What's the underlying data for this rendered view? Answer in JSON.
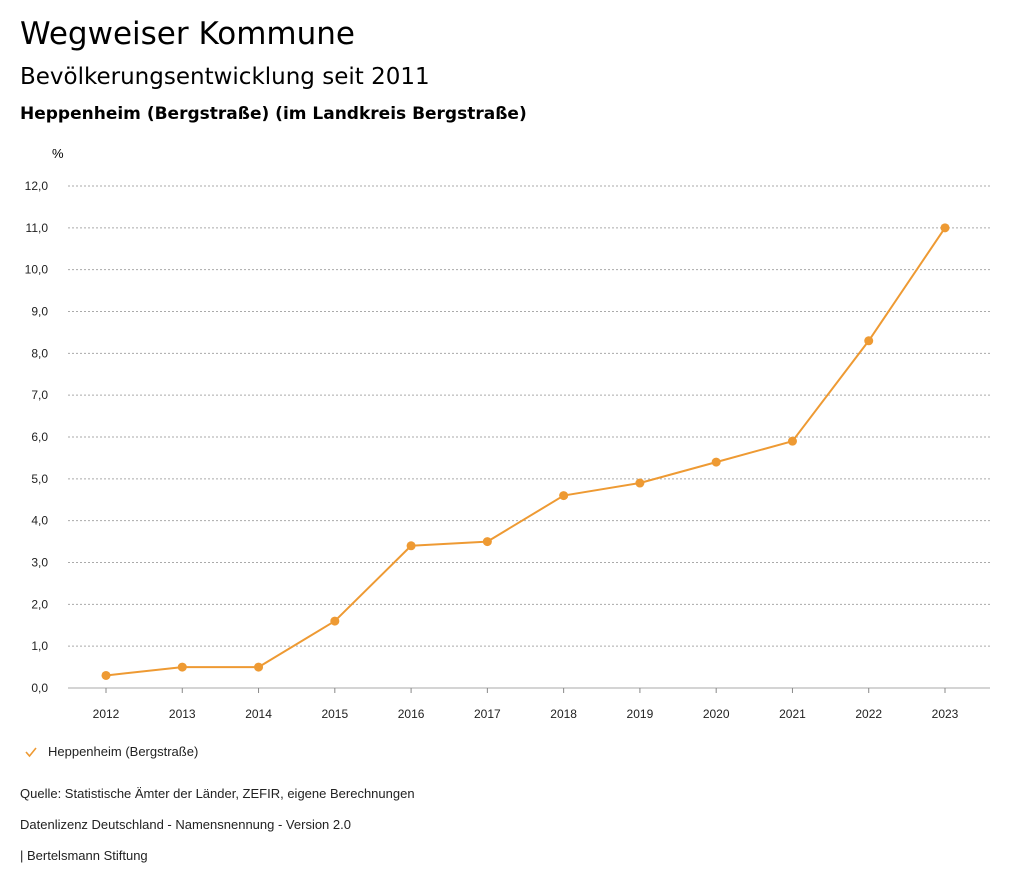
{
  "header": {
    "title": "Wegweiser Kommune",
    "subtitle": "Bevölkerungsentwicklung seit 2011",
    "region": "Heppenheim (Bergstraße) (im Landkreis Bergstraße)"
  },
  "colors": {
    "series": "#ee9a33",
    "grid": "#aaaaaa",
    "axis": "#888888"
  },
  "chart_data": {
    "type": "line",
    "ylabel": "%",
    "ylim": [
      0,
      12
    ],
    "yticks": [
      "0,0",
      "1,0",
      "2,0",
      "3,0",
      "4,0",
      "5,0",
      "6,0",
      "7,0",
      "8,0",
      "9,0",
      "10,0",
      "11,0",
      "12,0"
    ],
    "categories": [
      "2012",
      "2013",
      "2014",
      "2015",
      "2016",
      "2017",
      "2018",
      "2019",
      "2020",
      "2021",
      "2022",
      "2023"
    ],
    "grid": true,
    "legend_position": "bottom-left",
    "series": [
      {
        "name": "Heppenheim (Bergstraße)",
        "values": [
          0.3,
          0.5,
          0.5,
          1.6,
          3.4,
          3.5,
          4.6,
          4.9,
          5.4,
          5.9,
          8.3,
          11.0
        ]
      }
    ]
  },
  "footer": {
    "source": "Quelle: Statistische Ämter der Länder, ZEFIR, eigene Berechnungen",
    "license": "Datenlizenz Deutschland - Namensnennung - Version 2.0",
    "publisher": "| Bertelsmann Stiftung"
  }
}
